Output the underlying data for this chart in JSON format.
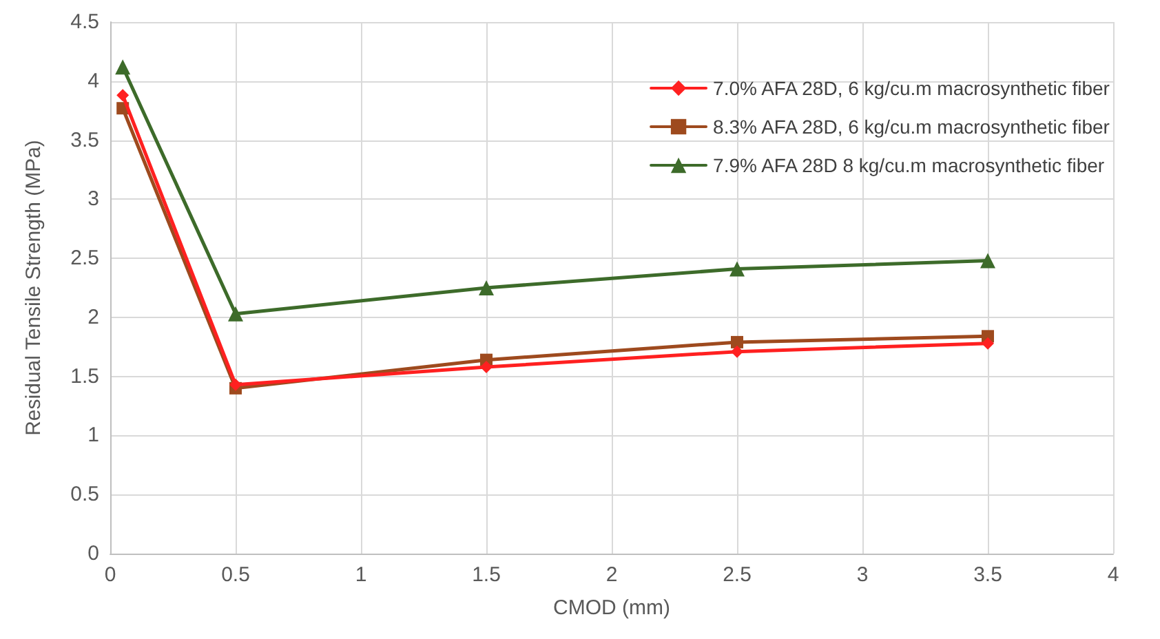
{
  "chart_data": {
    "type": "line",
    "xlabel": "CMOD (mm)",
    "ylabel": "Residual Tensile Strength (MPa)",
    "xlim": [
      0,
      4
    ],
    "xticks": [
      0,
      0.5,
      1,
      1.5,
      2,
      2.5,
      3,
      3.5,
      4
    ],
    "ylim": [
      0,
      4.5
    ],
    "yticks": [
      0,
      0.5,
      1,
      1.5,
      2,
      2.5,
      3,
      3.5,
      4,
      4.5
    ],
    "grid": true,
    "legend": "top right",
    "line_style": "solid",
    "series": [
      {
        "name": "7.0% AFA 28D, 6 kg/cu.m macrosynthetic fiber",
        "color": "#ff2020",
        "marker": "diamond",
        "x": [
          0.05,
          0.5,
          1.5,
          2.5,
          3.5
        ],
        "values": [
          3.88,
          1.43,
          1.58,
          1.71,
          1.78
        ]
      },
      {
        "name": "8.3% AFA 28D, 6 kg/cu.m macrosynthetic fiber",
        "color": "#9e4a1e",
        "marker": "square",
        "x": [
          0.05,
          0.5,
          1.5,
          2.5,
          3.5
        ],
        "values": [
          3.77,
          1.4,
          1.64,
          1.79,
          1.84
        ]
      },
      {
        "name": "7.9% AFA 28D 8 kg/cu.m macrosynthetic fiber",
        "color": "#3d6b2a",
        "marker": "triangle",
        "x": [
          0.05,
          0.5,
          1.5,
          2.5,
          3.5
        ],
        "values": [
          4.12,
          2.03,
          2.25,
          2.41,
          2.48
        ]
      }
    ]
  }
}
